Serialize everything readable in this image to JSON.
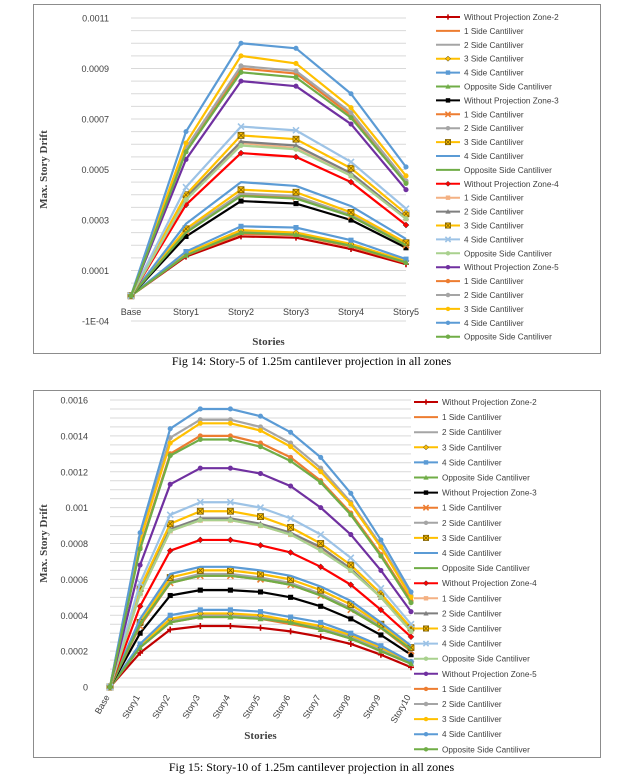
{
  "captions": {
    "fig14": "Fig 14: Story-5 of 1.25m cantilever projection in all zones",
    "fig15": "Fig 15: Story-10 of 1.25m cantilever projection in all zones"
  },
  "legend_styles": [
    {
      "color": "#c00000",
      "marker": "plus"
    },
    {
      "color": "#ed7d31",
      "marker": "none"
    },
    {
      "color": "#a5a5a5",
      "marker": "none"
    },
    {
      "color": "#ffc000",
      "marker": "diamond"
    },
    {
      "color": "#5b9bd5",
      "marker": "square"
    },
    {
      "color": "#70ad47",
      "marker": "triangle"
    },
    {
      "color": "#000000",
      "marker": "square"
    },
    {
      "color": "#ed7d31",
      "marker": "x"
    },
    {
      "color": "#a5a5a5",
      "marker": "circle"
    },
    {
      "color": "#ffc000",
      "marker": "boxx"
    },
    {
      "color": "#5b9bd5",
      "marker": "none"
    },
    {
      "color": "#70ad47",
      "marker": "none"
    },
    {
      "color": "#ff0000",
      "marker": "diamond"
    },
    {
      "color": "#f4b183",
      "marker": "square"
    },
    {
      "color": "#7f7f7f",
      "marker": "triangle"
    },
    {
      "color": "#ffc000",
      "marker": "boxx"
    },
    {
      "color": "#9dc3e6",
      "marker": "x"
    },
    {
      "color": "#a9d18e",
      "marker": "circle"
    },
    {
      "color": "#7030a0",
      "marker": "circle"
    },
    {
      "color": "#ed7d31",
      "marker": "circle"
    },
    {
      "color": "#a5a5a5",
      "marker": "circle"
    },
    {
      "color": "#ffc000",
      "marker": "circle"
    },
    {
      "color": "#5b9bd5",
      "marker": "circle"
    },
    {
      "color": "#70ad47",
      "marker": "circle"
    }
  ],
  "chart_data": [
    {
      "type": "line",
      "title": "",
      "xlabel": "Stories",
      "ylabel": "Max. Story Drift",
      "ylim": [
        -0.0001,
        0.0011
      ],
      "yticks": [
        "0.0011",
        "0.0009",
        "0.0007",
        "0.0005",
        "0.0003",
        "0.0001",
        "-1E-04"
      ],
      "ytick_values": [
        0.0011,
        0.0009,
        0.0007,
        0.0005,
        0.0003,
        0.0001,
        -0.0001
      ],
      "grid": true,
      "legend_position": "right",
      "categories": [
        "Base",
        "Story1",
        "Story2",
        "Story3",
        "Story4",
        "Story5"
      ],
      "series": [
        {
          "name": "Without Projection Zone-2",
          "values": [
            0,
            0.000155,
            0.000235,
            0.00023,
            0.000185,
            0.000125
          ]
        },
        {
          "name": "1 Side Cantiliver",
          "values": [
            0,
            0.00016,
            0.000245,
            0.00024,
            0.000195,
            0.00013
          ]
        },
        {
          "name": "2 Side Cantiliver",
          "values": [
            0,
            0.000165,
            0.000255,
            0.000245,
            0.0002,
            0.000135
          ]
        },
        {
          "name": "3 Side Cantiliver",
          "values": [
            0,
            0.000168,
            0.00026,
            0.00025,
            0.000205,
            0.000138
          ]
        },
        {
          "name": "4 Side Cantiliver",
          "values": [
            0,
            0.000175,
            0.000275,
            0.00027,
            0.00022,
            0.000145
          ]
        },
        {
          "name": "Opposite Side Cantiliver",
          "values": [
            0,
            0.00016,
            0.00025,
            0.000242,
            0.000198,
            0.000132
          ]
        },
        {
          "name": "Without Projection Zone-3",
          "values": [
            0,
            0.000235,
            0.000375,
            0.000365,
            0.0003,
            0.00019
          ]
        },
        {
          "name": "1 Side Cantiliver",
          "values": [
            0,
            0.000255,
            0.0004,
            0.00039,
            0.000315,
            0.0002
          ]
        },
        {
          "name": "2 Side Cantiliver",
          "values": [
            0,
            0.000258,
            0.000405,
            0.000395,
            0.00032,
            0.000205
          ]
        },
        {
          "name": "3 Side Cantiliver",
          "values": [
            0,
            0.000265,
            0.00042,
            0.00041,
            0.00033,
            0.00021
          ]
        },
        {
          "name": "4 Side Cantiliver",
          "values": [
            0,
            0.000285,
            0.00045,
            0.000435,
            0.000355,
            0.000225
          ]
        },
        {
          "name": "Opposite Side Cantiliver",
          "values": [
            0,
            0.00025,
            0.000395,
            0.000385,
            0.000315,
            0.0002
          ]
        },
        {
          "name": "Without Projection Zone-4",
          "values": [
            0,
            0.00036,
            0.000565,
            0.00055,
            0.00045,
            0.00028
          ]
        },
        {
          "name": "1 Side Cantiliver",
          "values": [
            0,
            0.000385,
            0.000605,
            0.000585,
            0.000475,
            0.000305
          ]
        },
        {
          "name": "2 Side Cantiliver",
          "values": [
            0,
            0.00039,
            0.00061,
            0.000595,
            0.000485,
            0.00031
          ]
        },
        {
          "name": "3 Side Cantiliver",
          "values": [
            0,
            0.0004,
            0.000635,
            0.00062,
            0.000505,
            0.000325
          ]
        },
        {
          "name": "4 Side Cantiliver",
          "values": [
            0,
            0.00043,
            0.00067,
            0.000655,
            0.00053,
            0.000345
          ]
        },
        {
          "name": "Opposite Side Cantiliver",
          "values": [
            0,
            0.00038,
            0.000595,
            0.00058,
            0.000475,
            0.000305
          ]
        },
        {
          "name": "Without Projection Zone-5",
          "values": [
            0,
            0.00054,
            0.00085,
            0.00083,
            0.00068,
            0.00042
          ]
        },
        {
          "name": "1 Side Cantiliver",
          "values": [
            0,
            0.00058,
            0.0009,
            0.00088,
            0.000715,
            0.00045
          ]
        },
        {
          "name": "2 Side Cantiliver",
          "values": [
            0,
            0.000585,
            0.00091,
            0.00089,
            0.000725,
            0.000455
          ]
        },
        {
          "name": "3 Side Cantiliver",
          "values": [
            0,
            0.000605,
            0.00095,
            0.00092,
            0.000745,
            0.000475
          ]
        },
        {
          "name": "4 Side Cantiliver",
          "values": [
            0,
            0.00065,
            0.001,
            0.00098,
            0.0008,
            0.00051
          ]
        },
        {
          "name": "Opposite Side Cantiliver",
          "values": [
            0,
            0.00057,
            0.000885,
            0.000865,
            0.000705,
            0.000445
          ]
        }
      ]
    },
    {
      "type": "line",
      "title": "",
      "xlabel": "Stories",
      "ylabel": "Max. Story Drift",
      "ylim": [
        0,
        0.0016
      ],
      "yticks": [
        "0.0016",
        "0.0014",
        "0.0012",
        "0.001",
        "0.0008",
        "0.0006",
        "0.0004",
        "0.0002",
        "0"
      ],
      "ytick_values": [
        0.0016,
        0.0014,
        0.0012,
        0.001,
        0.0008,
        0.0006,
        0.0004,
        0.0002,
        0
      ],
      "grid": true,
      "legend_position": "right",
      "categories": [
        "Base",
        "Story1",
        "Story2",
        "Story3",
        "Story4",
        "Story5",
        "Story6",
        "Story7",
        "Story8",
        "Story9",
        "Story10"
      ],
      "series": [
        {
          "name": "Without Projection Zone-2",
          "values": [
            0,
            0.00019,
            0.00032,
            0.00034,
            0.00034,
            0.00033,
            0.00031,
            0.00028,
            0.00024,
            0.00018,
            0.00011
          ]
        },
        {
          "name": "1 Side Cantiliver",
          "values": [
            0,
            0.00022,
            0.00036,
            0.00039,
            0.00039,
            0.00038,
            0.00035,
            0.00032,
            0.00027,
            0.0002,
            0.00013
          ]
        },
        {
          "name": "2 Side Cantiliver",
          "values": [
            0,
            0.00022,
            0.00037,
            0.0004,
            0.0004,
            0.00039,
            0.00036,
            0.00033,
            0.00028,
            0.00021,
            0.00013
          ]
        },
        {
          "name": "3 Side Cantiliver",
          "values": [
            0,
            0.00023,
            0.00038,
            0.00041,
            0.00041,
            0.0004,
            0.00037,
            0.00034,
            0.00029,
            0.00022,
            0.00014
          ]
        },
        {
          "name": "4 Side Cantiliver",
          "values": [
            0,
            0.00024,
            0.0004,
            0.00043,
            0.00043,
            0.00042,
            0.00039,
            0.00036,
            0.0003,
            0.00023,
            0.00014
          ]
        },
        {
          "name": "Opposite Side Cantiliver",
          "values": [
            0,
            0.00022,
            0.00036,
            0.00039,
            0.00039,
            0.00038,
            0.00036,
            0.00032,
            0.00027,
            0.0002,
            0.00013
          ]
        },
        {
          "name": "Without Projection Zone-3",
          "values": [
            0,
            0.0003,
            0.00051,
            0.00054,
            0.00054,
            0.00053,
            0.0005,
            0.00045,
            0.00038,
            0.00029,
            0.00018
          ]
        },
        {
          "name": "1 Side Cantiliver",
          "values": [
            0,
            0.00034,
            0.00058,
            0.00062,
            0.00062,
            0.0006,
            0.00057,
            0.00051,
            0.00043,
            0.00033,
            0.0002
          ]
        },
        {
          "name": "2 Side Cantiliver",
          "values": [
            0,
            0.00035,
            0.00059,
            0.00063,
            0.00063,
            0.00061,
            0.00058,
            0.00052,
            0.00044,
            0.00034,
            0.00021
          ]
        },
        {
          "name": "3 Side Cantiliver",
          "values": [
            0,
            0.00036,
            0.00061,
            0.00065,
            0.00065,
            0.00063,
            0.0006,
            0.00054,
            0.00046,
            0.00035,
            0.00022
          ]
        },
        {
          "name": "4 Side Cantiliver",
          "values": [
            0,
            0.00038,
            0.00063,
            0.00067,
            0.00067,
            0.00065,
            0.00062,
            0.00056,
            0.00048,
            0.00036,
            0.00023
          ]
        },
        {
          "name": "Opposite Side Cantiliver",
          "values": [
            0,
            0.00035,
            0.00058,
            0.00062,
            0.00062,
            0.0006,
            0.00057,
            0.00051,
            0.00043,
            0.00033,
            0.00021
          ]
        },
        {
          "name": "Without Projection Zone-4",
          "values": [
            0,
            0.00045,
            0.00076,
            0.00082,
            0.00082,
            0.00079,
            0.00075,
            0.00067,
            0.00057,
            0.00043,
            0.00028
          ]
        },
        {
          "name": "1 Side Cantiliver",
          "values": [
            0,
            0.00052,
            0.00087,
            0.00093,
            0.00093,
            0.0009,
            0.00085,
            0.00077,
            0.00065,
            0.0005,
            0.00031
          ]
        },
        {
          "name": "2 Side Cantiliver",
          "values": [
            0,
            0.00053,
            0.00088,
            0.00094,
            0.00094,
            0.00091,
            0.00086,
            0.00078,
            0.00066,
            0.0005,
            0.00032
          ]
        },
        {
          "name": "3 Side Cantiliver",
          "values": [
            0,
            0.00055,
            0.00091,
            0.00098,
            0.00098,
            0.00095,
            0.00089,
            0.0008,
            0.00068,
            0.00052,
            0.00033
          ]
        },
        {
          "name": "4 Side Cantiliver",
          "values": [
            0,
            0.00058,
            0.00096,
            0.00103,
            0.00103,
            0.001,
            0.00094,
            0.00085,
            0.00072,
            0.00055,
            0.00035
          ]
        },
        {
          "name": "Opposite Side Cantiliver",
          "values": [
            0,
            0.00052,
            0.00087,
            0.00093,
            0.00093,
            0.0009,
            0.00085,
            0.00076,
            0.00065,
            0.0005,
            0.00031
          ]
        },
        {
          "name": "Without Projection Zone-5",
          "values": [
            0,
            0.00068,
            0.00113,
            0.00122,
            0.00122,
            0.00119,
            0.00112,
            0.001,
            0.00085,
            0.00065,
            0.00042
          ]
        },
        {
          "name": "1 Side Cantiliver",
          "values": [
            0,
            0.00078,
            0.0013,
            0.0014,
            0.0014,
            0.00136,
            0.00128,
            0.00115,
            0.00097,
            0.00074,
            0.00048
          ]
        },
        {
          "name": "2 Side Cantiliver",
          "values": [
            0,
            0.00083,
            0.00139,
            0.00149,
            0.00149,
            0.00145,
            0.00136,
            0.00122,
            0.00103,
            0.00079,
            0.00051
          ]
        },
        {
          "name": "3 Side Cantiliver",
          "values": [
            0,
            0.00082,
            0.00136,
            0.00147,
            0.00147,
            0.00143,
            0.00134,
            0.0012,
            0.00102,
            0.00078,
            0.0005
          ]
        },
        {
          "name": "4 Side Cantiliver",
          "values": [
            0,
            0.00086,
            0.00144,
            0.00155,
            0.00155,
            0.00151,
            0.00142,
            0.00128,
            0.00108,
            0.00082,
            0.00053
          ]
        },
        {
          "name": "Opposite Side Cantiliver",
          "values": [
            0,
            0.00077,
            0.00129,
            0.00138,
            0.00138,
            0.00134,
            0.00126,
            0.00114,
            0.00096,
            0.00073,
            0.00047
          ]
        }
      ]
    }
  ]
}
